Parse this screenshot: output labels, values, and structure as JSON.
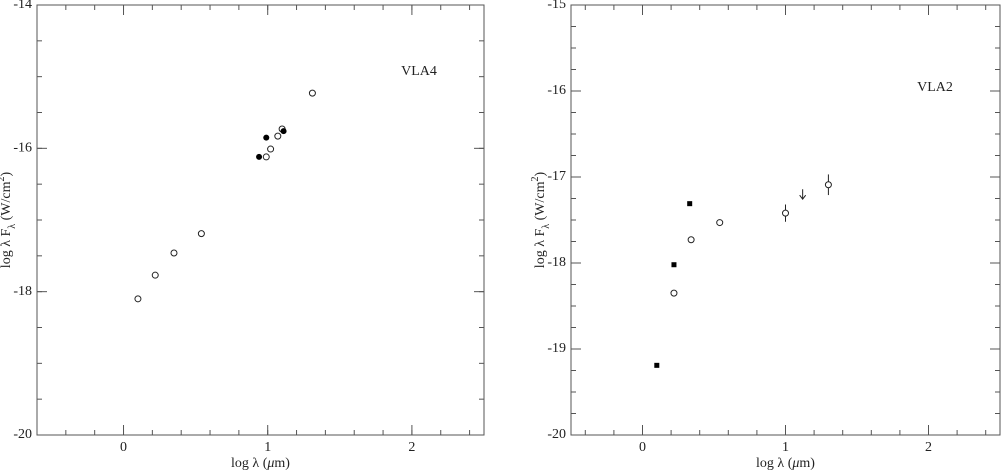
{
  "chart_data": [
    {
      "type": "scatter",
      "annotation": "VLA4",
      "x_label": [
        "log λ (",
        "μ",
        "m)"
      ],
      "y_label": [
        "log λ F",
        "λ",
        " (W/cm",
        "2",
        ")"
      ],
      "xlim": [
        -0.6,
        2.5
      ],
      "ylim": [
        -20,
        -14
      ],
      "xticks": [
        0,
        1,
        2
      ],
      "yticks": [
        -20,
        -18,
        -16,
        -14
      ],
      "series": [
        {
          "marker": "open-circle",
          "color": "#222",
          "x": [
            0.1,
            0.22,
            0.35,
            0.54,
            0.99,
            1.02,
            1.07,
            1.1,
            1.31
          ],
          "values": [
            -18.1,
            -17.77,
            -17.46,
            -17.19,
            -16.12,
            -16.01,
            -15.83,
            -15.73,
            -15.23
          ]
        },
        {
          "marker": "filled-circle",
          "color": "#000",
          "x": [
            0.94,
            0.99,
            1.11
          ],
          "values": [
            -16.12,
            -15.85,
            -15.76
          ]
        }
      ]
    },
    {
      "type": "scatter",
      "annotation": "VLA2",
      "x_label": [
        "log λ (",
        "μ",
        "m)"
      ],
      "y_label": [
        "log λ F",
        "λ",
        " (W/cm",
        "2",
        ")"
      ],
      "xlim": [
        -0.5,
        2.5
      ],
      "ylim": [
        -20,
        -15
      ],
      "xticks": [
        0,
        1,
        2
      ],
      "yticks": [
        -20,
        -19,
        -18,
        -17,
        -16,
        -15
      ],
      "series": [
        {
          "marker": "filled-square",
          "color": "#000",
          "x": [
            0.1,
            0.22,
            0.33
          ],
          "values": [
            -19.19,
            -18.02,
            -17.31
          ]
        },
        {
          "marker": "open-circle",
          "color": "#222",
          "x": [
            0.22,
            0.34,
            0.54,
            1.0,
            1.3
          ],
          "values": [
            -18.35,
            -17.73,
            -17.53,
            -17.42,
            -17.09
          ],
          "errors": [
            null,
            null,
            null,
            0.1,
            0.12
          ]
        },
        {
          "marker": "upper-limit",
          "color": "#222",
          "x": [
            1.12
          ],
          "values": [
            -17.2
          ]
        }
      ]
    }
  ]
}
